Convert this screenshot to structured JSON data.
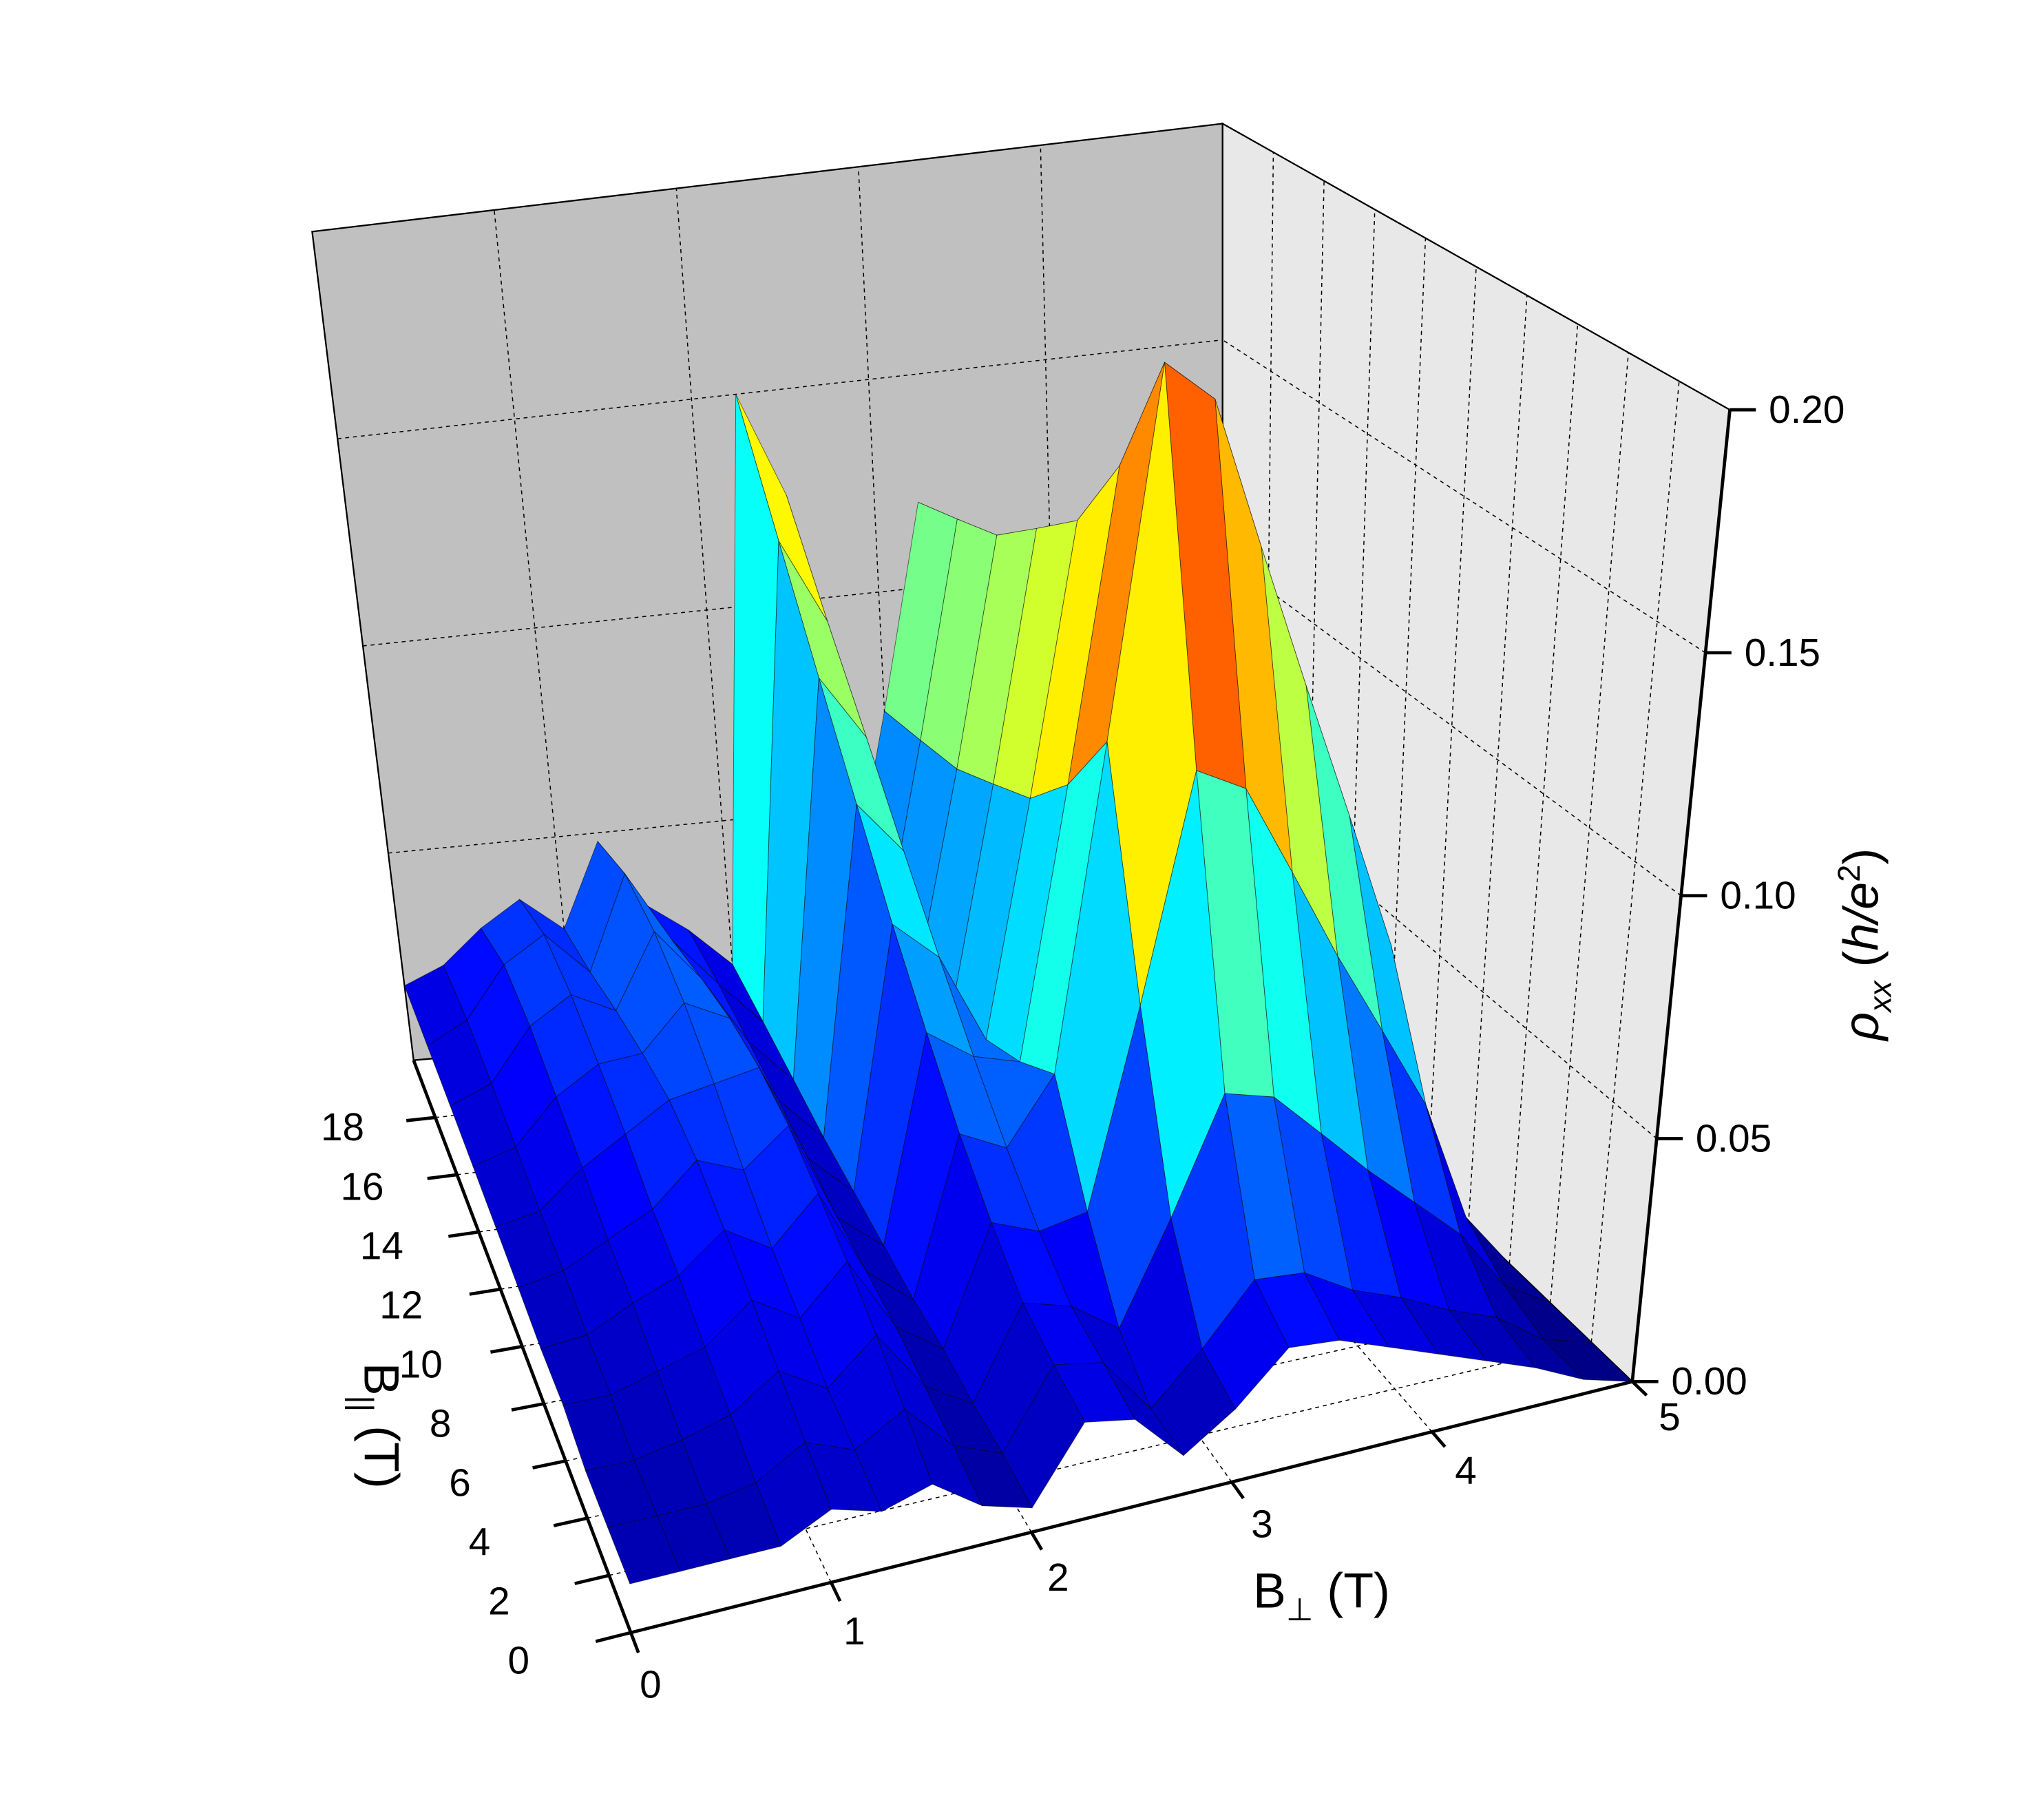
{
  "chart_data": {
    "type": "surface3d",
    "x_label": {
      "main": "B",
      "sub": "⊥",
      "unit": " (T)"
    },
    "y_label": {
      "main": "B",
      "sub": "||",
      "unit": " (T)"
    },
    "z_label": {
      "symbol": "ρ",
      "sub": "xx",
      "open": " (",
      "unit": "h/e",
      "sup": "2",
      "close": ")"
    },
    "x": [
      0,
      0.25,
      0.5,
      0.75,
      1,
      1.25,
      1.5,
      1.75,
      2,
      2.25,
      2.5,
      2.75,
      3,
      3.25,
      3.5,
      3.75,
      4,
      4.25,
      4.5,
      4.75,
      5
    ],
    "y": [
      0,
      2,
      4,
      6,
      8,
      10,
      12,
      14,
      16,
      18,
      20
    ],
    "values": [
      [
        0.01,
        0.01,
        0.01,
        0.01,
        0.015,
        0.012,
        0.015,
        0.008,
        0.005,
        0.02,
        0.018,
        0.008,
        0.015,
        0.025,
        0.024,
        0.02,
        0.016,
        0.012,
        0.008,
        0.003,
        0
      ],
      [
        0.01,
        0.01,
        0.01,
        0.012,
        0.018,
        0.014,
        0.02,
        0.01,
        0.006,
        0.022,
        0.02,
        0.008,
        0.018,
        0.03,
        0.029,
        0.023,
        0.019,
        0.014,
        0.01,
        0.003,
        0
      ],
      [
        0.01,
        0.01,
        0.012,
        0.015,
        0.022,
        0.016,
        0.025,
        0.012,
        0.006,
        0.025,
        0.022,
        0.015,
        0.036,
        0.06,
        0.057,
        0.047,
        0.037,
        0.028,
        0.019,
        0.006,
        0
      ],
      [
        0.012,
        0.012,
        0.015,
        0.018,
        0.026,
        0.02,
        0.03,
        0.014,
        0.007,
        0.032,
        0.028,
        0.03,
        0.072,
        0.12,
        0.114,
        0.094,
        0.074,
        0.056,
        0.038,
        0.012,
        0
      ],
      [
        0.012,
        0.013,
        0.018,
        0.022,
        0.03,
        0.024,
        0.034,
        0.015,
        0.007,
        0.041,
        0.036,
        0.05,
        0.12,
        0.2,
        0.19,
        0.156,
        0.124,
        0.094,
        0.064,
        0.02,
        0
      ],
      [
        0.013,
        0.015,
        0.02,
        0.025,
        0.034,
        0.03,
        0.038,
        0.016,
        0.008,
        0.053,
        0.046,
        0.043,
        0.102,
        0.17,
        0.162,
        0.133,
        0.105,
        0.08,
        0.054,
        0.017,
        0
      ],
      [
        0.014,
        0.016,
        0.024,
        0.03,
        0.036,
        0.038,
        0.04,
        0.018,
        0.009,
        0.067,
        0.058,
        0.038,
        0.09,
        0.15,
        0.143,
        0.117,
        0.093,
        0.071,
        0.048,
        0.015,
        0
      ],
      [
        0.015,
        0.018,
        0.028,
        0.034,
        0.035,
        0.045,
        0.04,
        0.02,
        0.01,
        0.084,
        0.072,
        0.035,
        0.084,
        0.14,
        0.133,
        0.109,
        0.087,
        0.066,
        0.045,
        0.014,
        0
      ],
      [
        0.016,
        0.02,
        0.032,
        0.038,
        0.033,
        0.05,
        0.038,
        0.022,
        0.012,
        0.103,
        0.088,
        0.033,
        0.078,
        0.13,
        0.124,
        0.101,
        0.081,
        0.061,
        0.042,
        0.013,
        0
      ],
      [
        0.017,
        0.022,
        0.034,
        0.04,
        0.03,
        0.052,
        0.035,
        0.024,
        0.014,
        0.125,
        0.105,
        0.031,
        0.075,
        0.125,
        0.119,
        0.098,
        0.078,
        0.059,
        0.04,
        0.013,
        0
      ],
      [
        0.018,
        0.022,
        0.03,
        0.036,
        0.028,
        0.048,
        0.032,
        0.025,
        0.016,
        0.15,
        0.125,
        0.03,
        0.072,
        0.12,
        0.114,
        0.094,
        0.074,
        0.056,
        0.038,
        0.012,
        0
      ]
    ],
    "xlim": [
      0,
      5
    ],
    "ylim": [
      0,
      20
    ],
    "zlim": [
      0,
      0.2
    ],
    "xticks": [
      0,
      1,
      2,
      3,
      4,
      5
    ],
    "yticks": [
      0,
      2,
      4,
      6,
      8,
      10,
      12,
      14,
      16,
      18
    ],
    "zticks": [
      {
        "value": 0,
        "label": "0.00"
      },
      0.05,
      {
        "value": 0.1,
        "label": "0.10"
      },
      0.15,
      {
        "value": 0.2,
        "label": "0.20"
      }
    ],
    "colormap": "jet",
    "mesh": true,
    "grid": true
  }
}
